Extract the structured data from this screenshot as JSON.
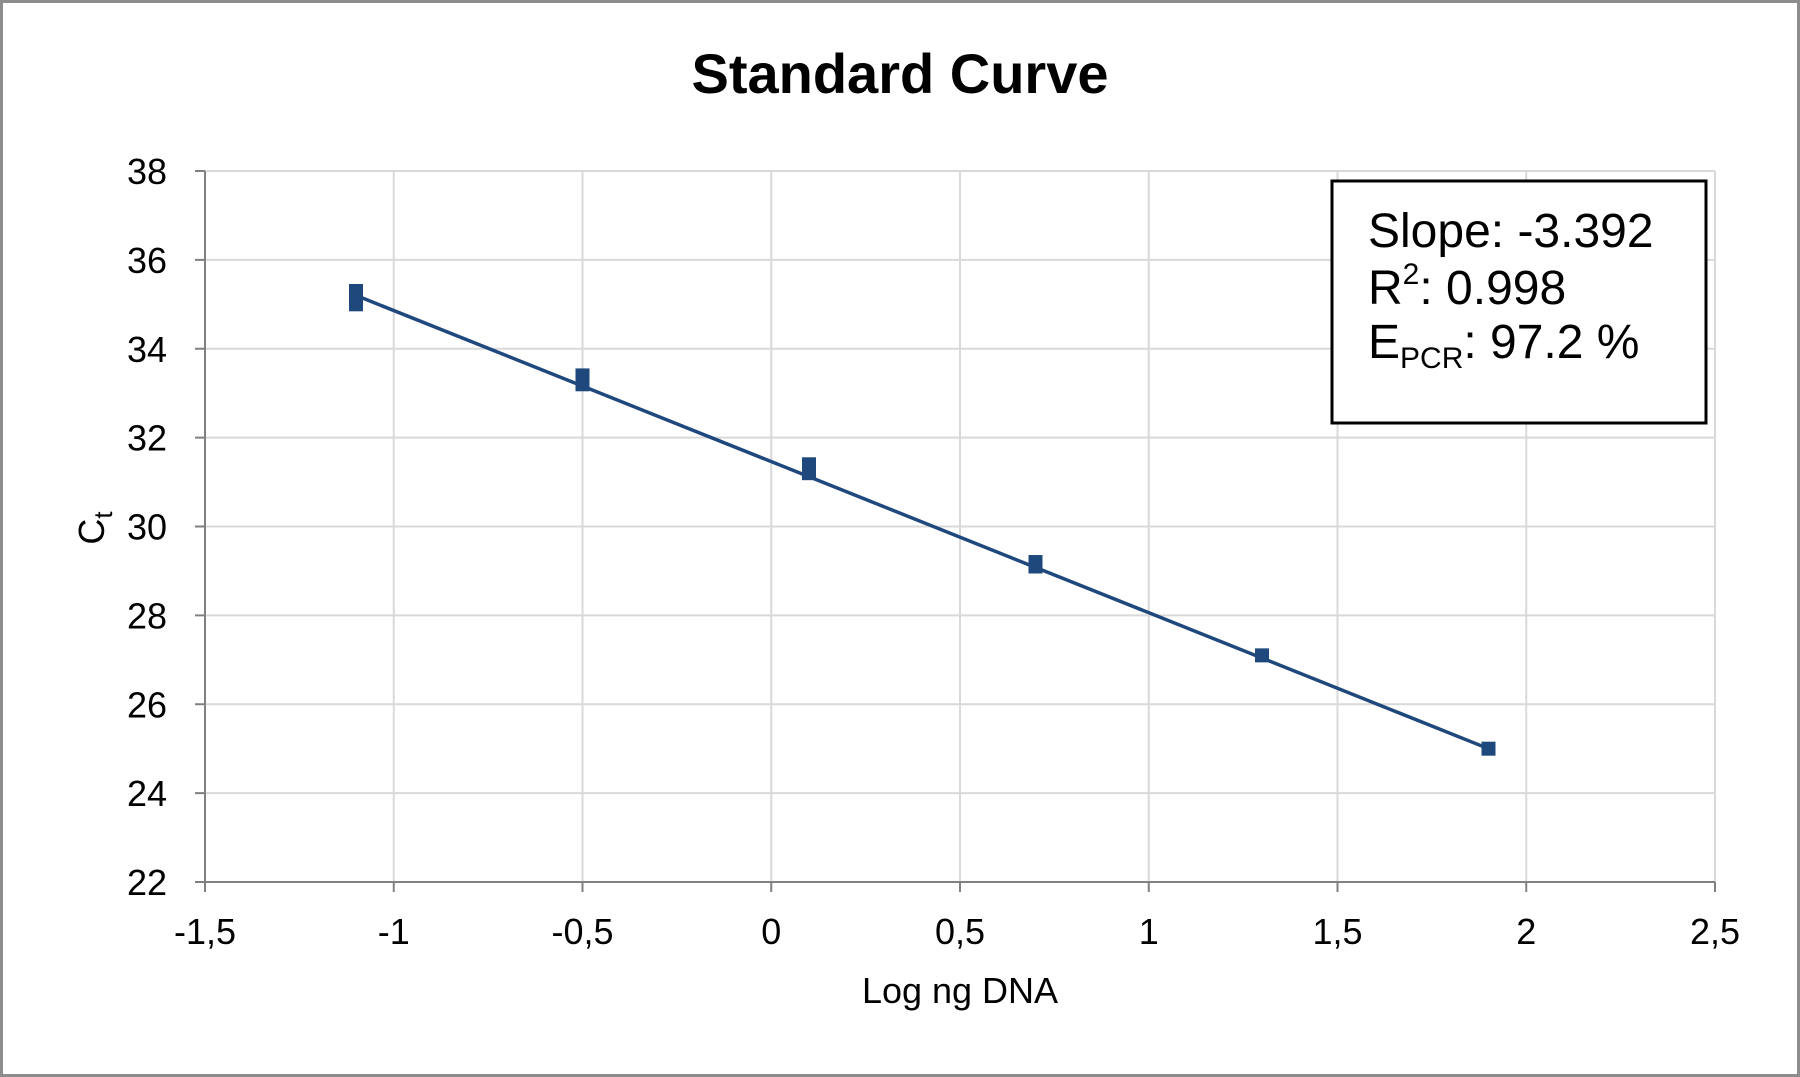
{
  "chart_data": {
    "type": "scatter",
    "title": "Standard Curve",
    "xlabel": "Log ng DNA",
    "ylabel_main": "C",
    "ylabel_sub": "t",
    "xlim": [
      -1.5,
      2.5
    ],
    "ylim": [
      22,
      38
    ],
    "x_ticks": [
      -1.5,
      -1,
      -0.5,
      0,
      0.5,
      1,
      1.5,
      2,
      2.5
    ],
    "x_tick_labels": [
      "-1,5",
      "-1",
      "-0,5",
      "0",
      "0,5",
      "1",
      "1,5",
      "2",
      "2,5"
    ],
    "y_ticks": [
      22,
      24,
      26,
      28,
      30,
      32,
      34,
      36,
      38
    ],
    "y_tick_labels": [
      "22",
      "24",
      "26",
      "28",
      "30",
      "32",
      "34",
      "36",
      "38"
    ],
    "grid": true,
    "series": [
      {
        "color": "#1f497d",
        "points": [
          {
            "x": -1.1,
            "y": 35.3
          },
          {
            "x": -1.1,
            "y": 35.0
          },
          {
            "x": -0.5,
            "y": 33.4
          },
          {
            "x": -0.5,
            "y": 33.2
          },
          {
            "x": 0.1,
            "y": 31.4
          },
          {
            "x": 0.1,
            "y": 31.2
          },
          {
            "x": 0.7,
            "y": 29.2
          },
          {
            "x": 0.7,
            "y": 29.1
          },
          {
            "x": 1.3,
            "y": 27.1
          },
          {
            "x": 1.9,
            "y": 25.0
          }
        ]
      }
    ],
    "trendline": {
      "x_start": -1.1,
      "y_start": 35.2,
      "x_end": 1.9,
      "y_end": 25.0,
      "color": "#1f497d"
    },
    "annotation": {
      "slope_text": "Slope: -3.392",
      "r2_prefix": "R",
      "r2_sup": "2",
      "r2_value": ": 0.998",
      "epcr_prefix": "E",
      "epcr_sub": "PCR",
      "epcr_value": ": 97.2 %",
      "placement": "top-right"
    }
  }
}
